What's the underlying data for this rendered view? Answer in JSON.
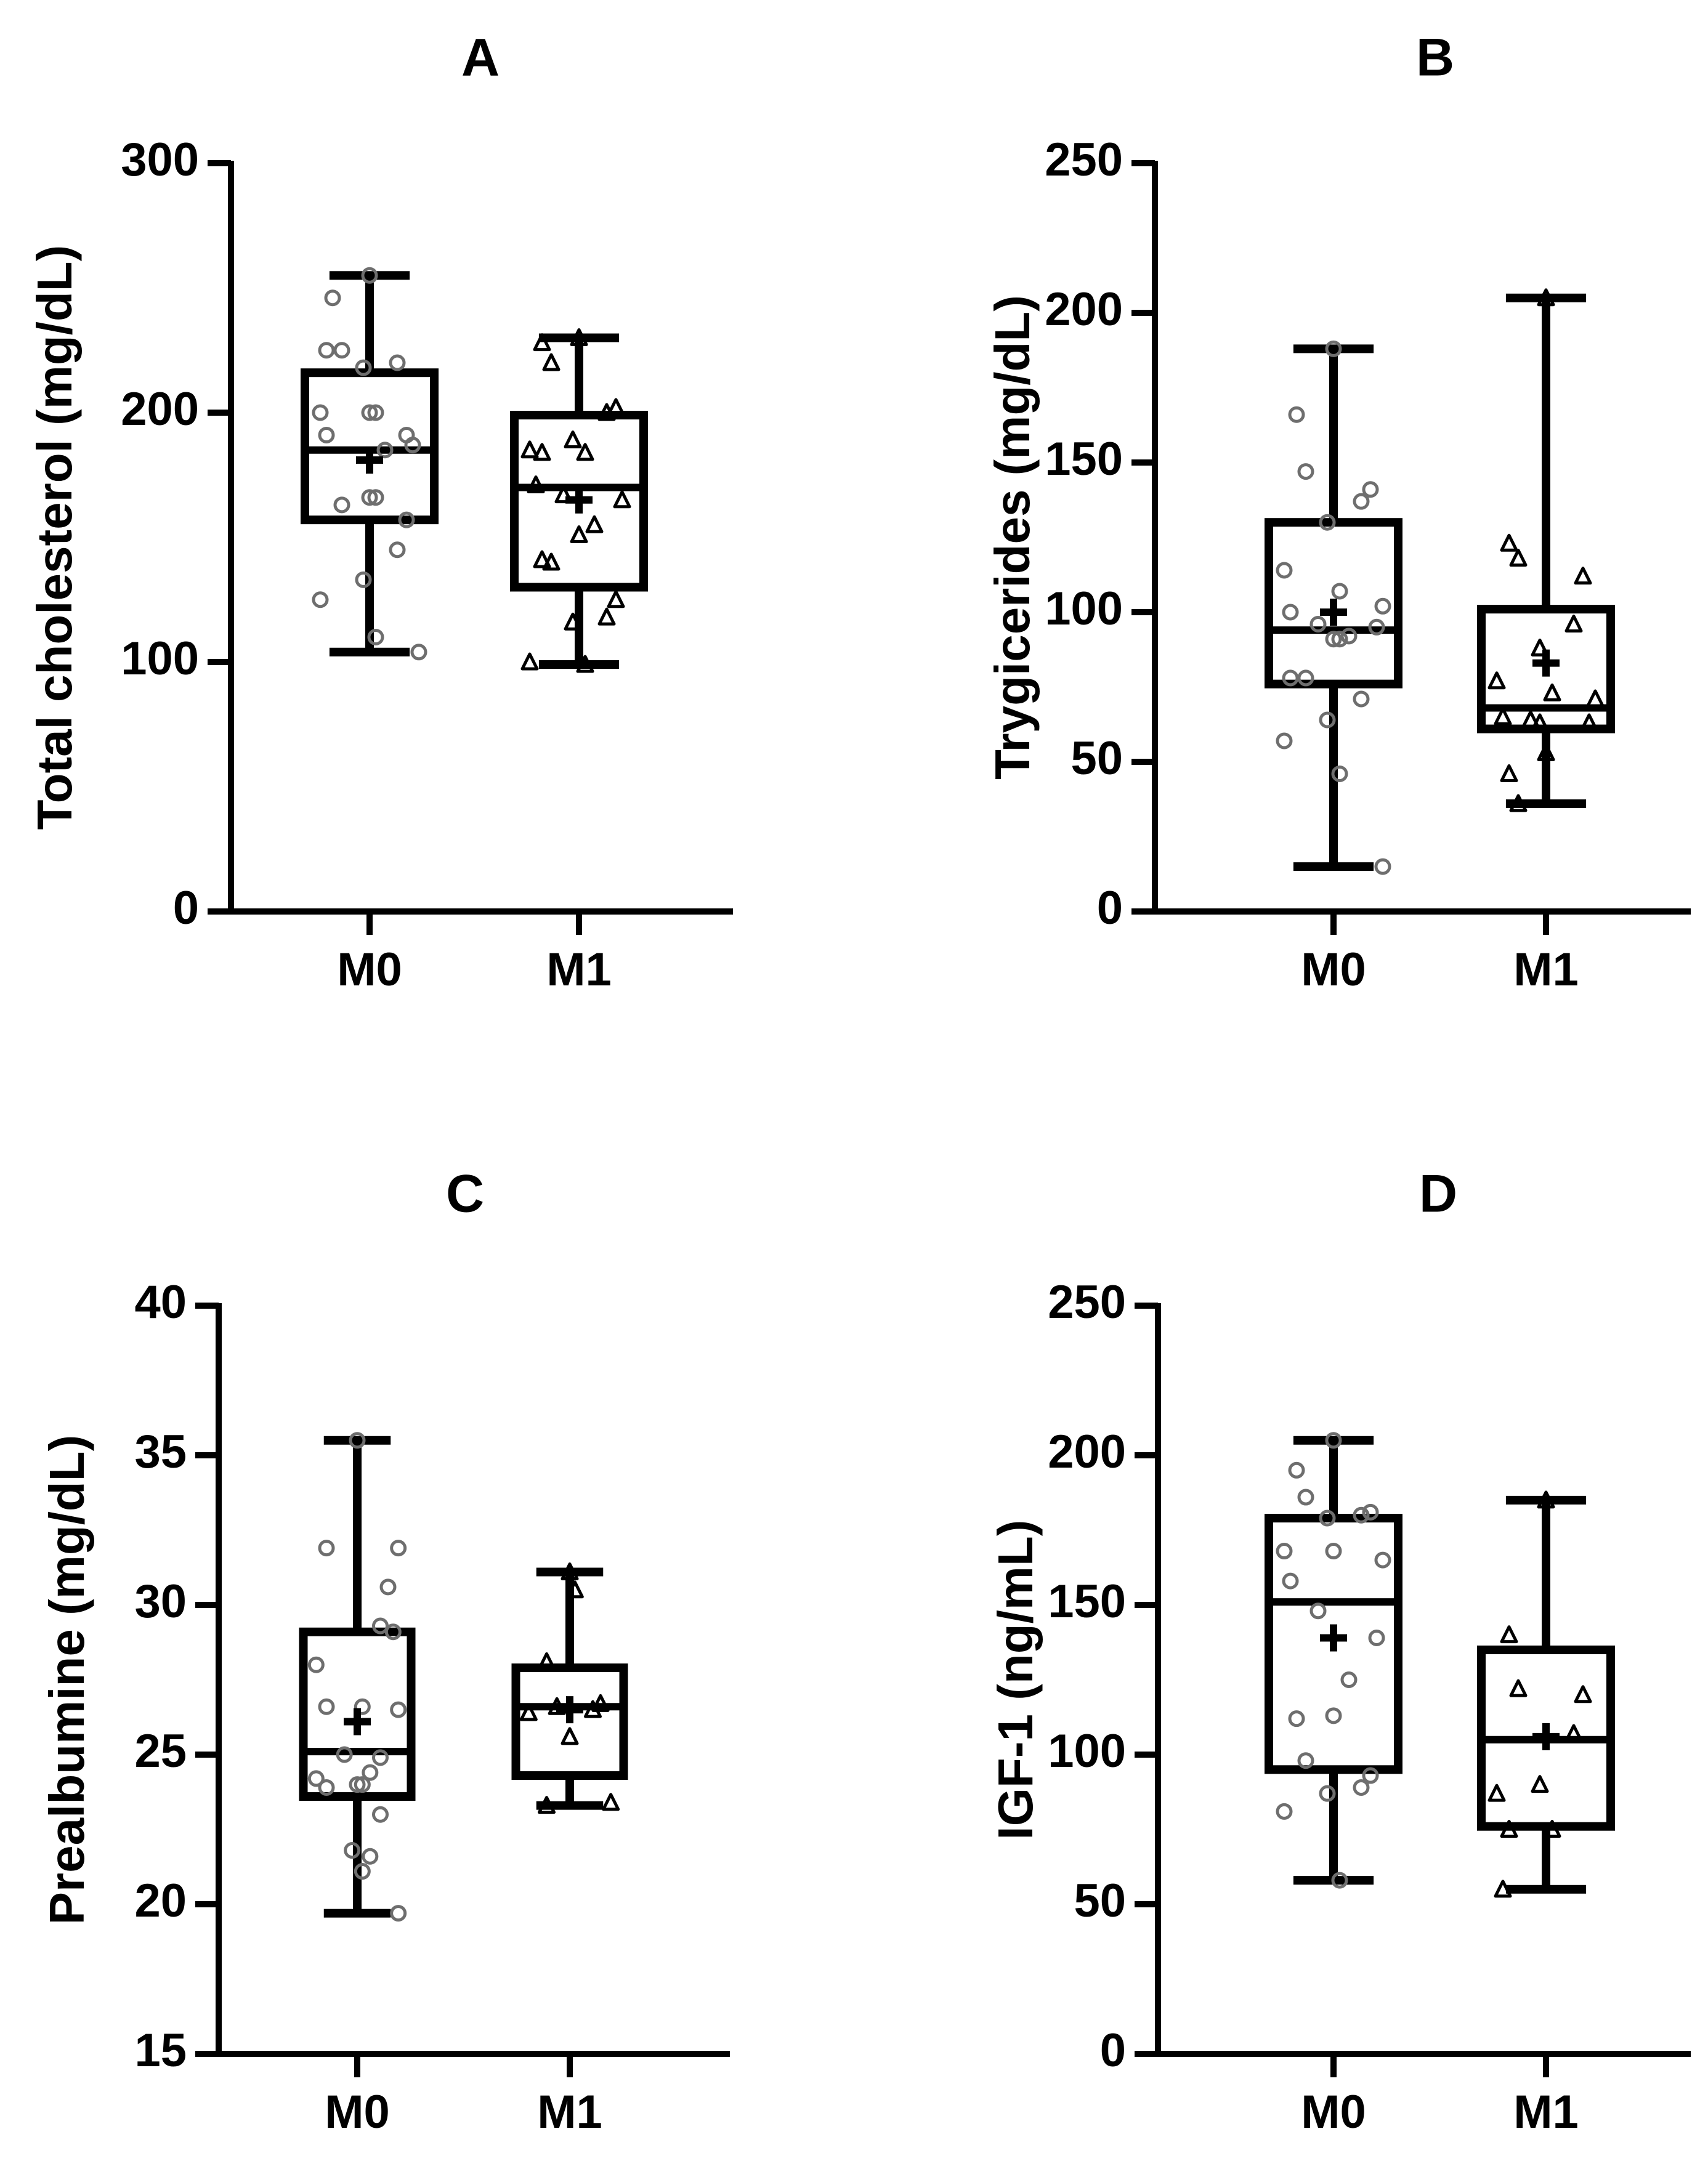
{
  "chart_data": [
    {
      "type": "box",
      "title": "A",
      "ylabel": "Total cholesterol (mg/dL)",
      "ylim": [
        0,
        300
      ],
      "yticks": [
        0,
        100,
        200,
        300
      ],
      "ytick_labels": [
        "0",
        "100",
        "200",
        "300"
      ],
      "categories": [
        "M0",
        "M1"
      ],
      "series": [
        {
          "name": "M0",
          "marker": "circle",
          "color": "#6e6e6e",
          "whisker_low": 104,
          "q1": 157,
          "median": 185,
          "q3": 216,
          "whisker_high": 255,
          "mean": 181,
          "points": [
            255,
            246,
            225,
            225,
            220,
            218,
            200,
            200,
            200,
            191,
            191,
            187,
            185,
            166,
            166,
            163,
            157,
            145,
            133,
            125,
            110,
            104
          ]
        },
        {
          "name": "M1",
          "marker": "triangle",
          "color": "#000000",
          "whisker_low": 99,
          "q1": 130,
          "median": 170,
          "q3": 199,
          "whisker_high": 230,
          "mean": 165,
          "points": [
            230,
            228,
            220,
            202,
            200,
            189,
            185,
            184,
            184,
            171,
            167,
            165,
            155,
            151,
            141,
            140,
            125,
            118,
            116,
            100,
            99
          ]
        }
      ]
    },
    {
      "type": "box",
      "title": "B",
      "ylabel": "Trygicerides (mg/dL)",
      "ylim": [
        0,
        250
      ],
      "yticks": [
        0,
        50,
        100,
        150,
        200,
        250
      ],
      "ytick_labels": [
        "0",
        "50",
        "100",
        "150",
        "200",
        "250"
      ],
      "categories": [
        "M0",
        "M1"
      ],
      "series": [
        {
          "name": "M0",
          "marker": "circle",
          "color": "#6e6e6e",
          "whisker_low": 15,
          "q1": 76,
          "median": 94,
          "q3": 130,
          "whisker_high": 188,
          "mean": 100,
          "points": [
            188,
            166,
            147,
            141,
            137,
            130,
            114,
            107,
            102,
            100,
            96,
            95,
            92,
            91,
            91,
            78,
            78,
            71,
            64,
            57,
            46,
            15
          ]
        },
        {
          "name": "M1",
          "marker": "triangle",
          "color": "#000000",
          "whisker_low": 36,
          "q1": 61,
          "median": 68,
          "q3": 101,
          "whisker_high": 205,
          "mean": 83,
          "points": [
            205,
            123,
            118,
            112,
            96,
            88,
            77,
            73,
            71,
            65,
            64,
            63,
            63,
            53,
            46,
            36
          ]
        }
      ]
    },
    {
      "type": "box",
      "title": "C",
      "ylabel": "Prealbumine (mg/dL)",
      "ylim": [
        15,
        40
      ],
      "yticks": [
        15,
        20,
        25,
        30,
        35,
        40
      ],
      "ytick_labels": [
        "15",
        "20",
        "25",
        "30",
        "35",
        "40"
      ],
      "categories": [
        "M0",
        "M1"
      ],
      "series": [
        {
          "name": "M0",
          "marker": "circle",
          "color": "#6e6e6e",
          "whisker_low": 19.7,
          "q1": 23.6,
          "median": 25.1,
          "q3": 29.1,
          "whisker_high": 35.5,
          "mean": 26.1,
          "points": [
            35.5,
            31.9,
            31.9,
            30.6,
            29.3,
            29.1,
            28.0,
            26.6,
            26.6,
            26.5,
            25.0,
            24.9,
            24.4,
            24.2,
            24.0,
            24.0,
            23.9,
            23.0,
            21.8,
            21.6,
            21.1,
            19.7
          ]
        },
        {
          "name": "M1",
          "marker": "triangle",
          "color": "#000000",
          "whisker_low": 23.3,
          "q1": 24.3,
          "median": 26.6,
          "q3": 27.9,
          "whisker_high": 31.1,
          "mean": 26.5,
          "points": [
            31.1,
            30.5,
            28.1,
            26.7,
            26.6,
            26.5,
            26.4,
            25.6,
            23.4,
            23.3
          ]
        }
      ]
    },
    {
      "type": "box",
      "title": "D",
      "ylabel": "IGF-1 (ng/mL)",
      "ylim": [
        0,
        250
      ],
      "yticks": [
        0,
        50,
        100,
        150,
        200,
        250
      ],
      "ytick_labels": [
        "0",
        "50",
        "100",
        "150",
        "200",
        "250"
      ],
      "categories": [
        "M0",
        "M1"
      ],
      "series": [
        {
          "name": "M0",
          "marker": "circle",
          "color": "#6e6e6e",
          "whisker_low": 58,
          "q1": 95,
          "median": 151,
          "q3": 179,
          "whisker_high": 205,
          "mean": 139,
          "points": [
            205,
            195,
            186,
            181,
            180,
            179,
            168,
            168,
            165,
            158,
            148,
            139,
            125,
            113,
            112,
            98,
            93,
            89,
            87,
            81,
            58
          ]
        },
        {
          "name": "M1",
          "marker": "triangle",
          "color": "#000000",
          "whisker_low": 55,
          "q1": 76,
          "median": 105,
          "q3": 135,
          "whisker_high": 185,
          "mean": 106,
          "points": [
            185,
            140,
            122,
            120,
            107,
            90,
            87,
            75,
            75,
            55
          ]
        }
      ]
    }
  ]
}
